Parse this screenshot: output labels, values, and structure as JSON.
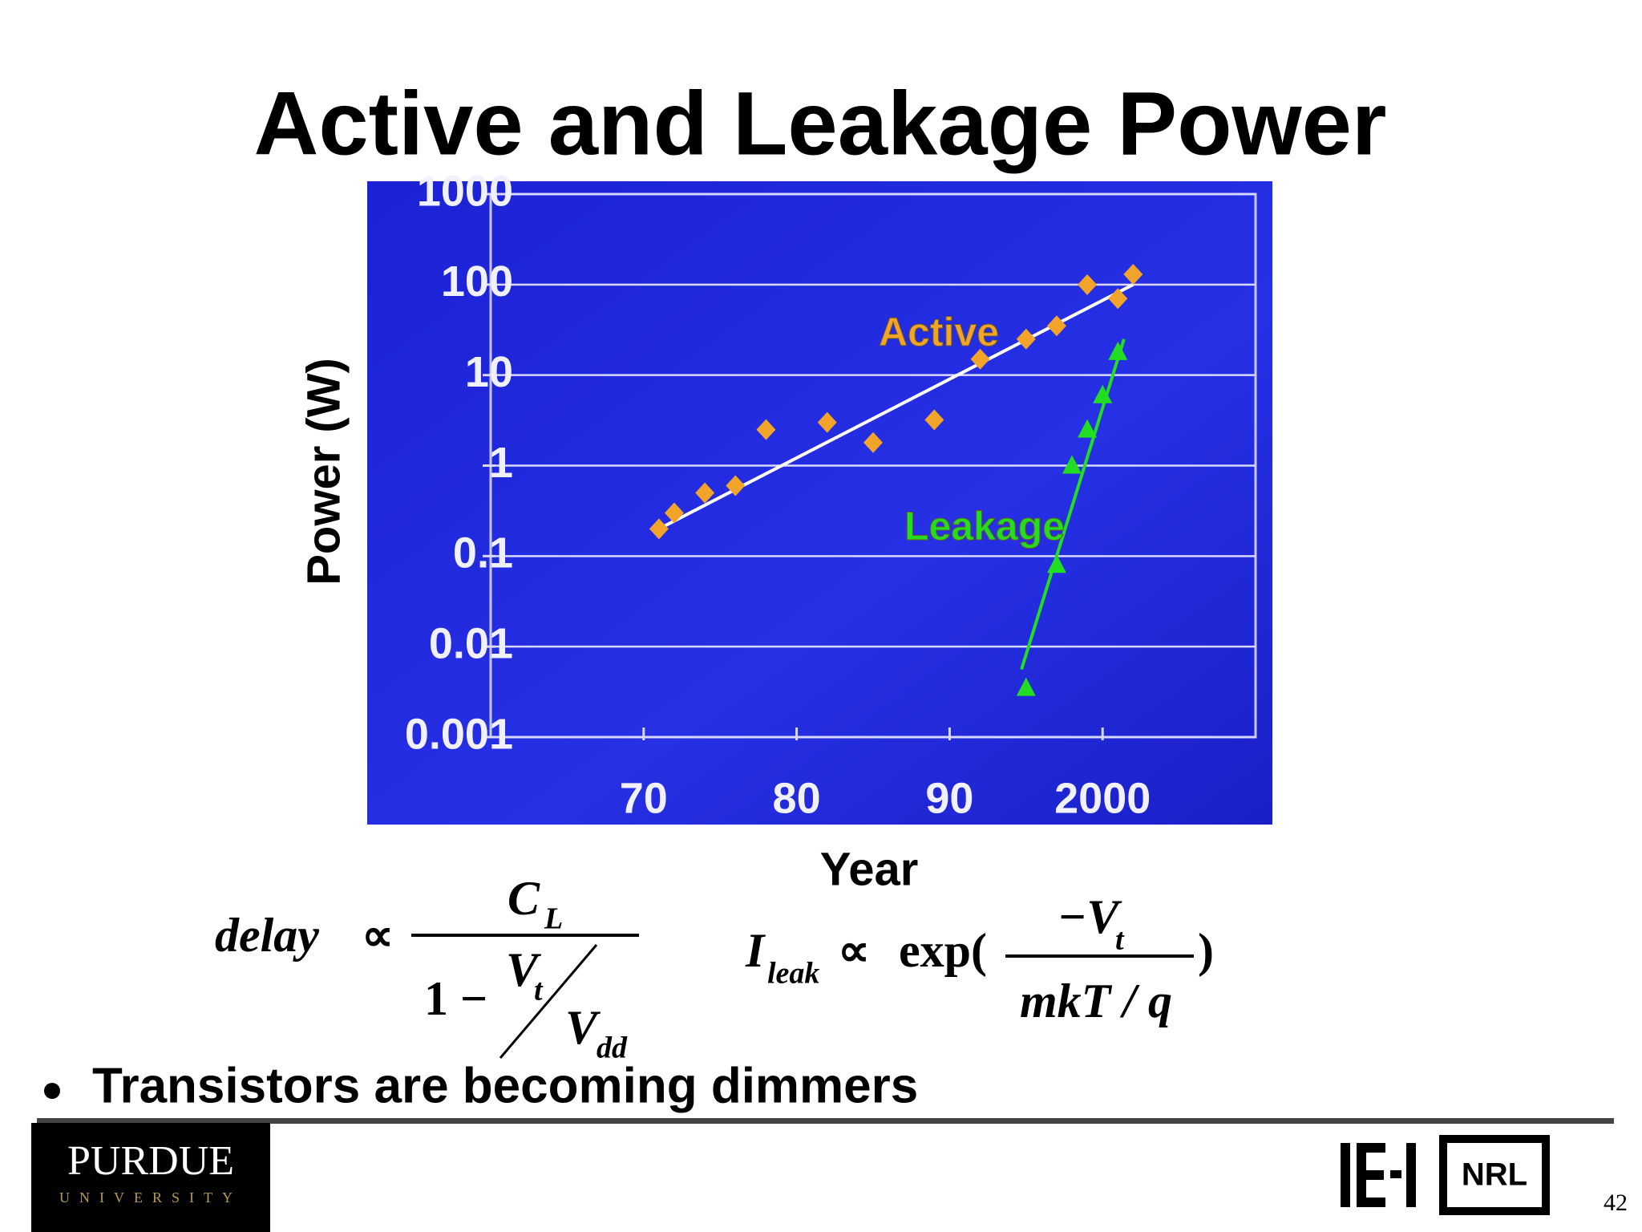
{
  "chart_data": {
    "type": "scatter",
    "title": "Active and Leakage Power",
    "xlabel": "Year",
    "ylabel": "Power (W)",
    "xlim": [
      1960,
      2010
    ],
    "xticks": [
      {
        "value": 1970,
        "label": "70"
      },
      {
        "value": 1980,
        "label": "80"
      },
      {
        "value": 1990,
        "label": "90"
      },
      2000
    ],
    "ylim": [
      0.001,
      1000
    ],
    "yticks": [
      1000,
      100,
      10,
      1,
      0.1,
      0.01,
      0.001
    ],
    "log_y": true,
    "grid": true,
    "series": [
      {
        "name": "Active",
        "color": "#f2a42a",
        "marker": "diamond",
        "x": [
          1971,
          1972,
          1974,
          1976,
          1978,
          1982,
          1985,
          1989,
          1992,
          1995,
          1997,
          1999,
          2001,
          2002
        ],
        "values": [
          0.2,
          0.3,
          0.5,
          0.6,
          2.5,
          3,
          1.8,
          3.2,
          15,
          25,
          35,
          100,
          70,
          130
        ],
        "trend": {
          "color": "#ffffff",
          "x": [
            1971,
            2002
          ],
          "values": [
            0.2,
            100
          ]
        }
      },
      {
        "name": "Leakage",
        "color": "#22dd22",
        "marker": "triangle",
        "x": [
          1995,
          1997,
          1998,
          1999,
          2000,
          2001
        ],
        "values": [
          0.0035,
          0.08,
          1,
          2.5,
          6,
          18
        ],
        "trend": {
          "color": "#22dd22",
          "x": [
            1994.7,
            2001.4
          ],
          "values": [
            0.0056,
            25
          ]
        }
      }
    ]
  },
  "equations": {
    "delay": {
      "lhs": "delay",
      "prop": "∝",
      "num": "C",
      "num_sub": "L",
      "den_a": "1 −",
      "den_v": "V",
      "den_v_sub": "t",
      "den_vdd": "V",
      "den_vdd_sub": "dd"
    },
    "leak": {
      "lhs": "I",
      "lhs_sub": "leak",
      "prop": "∝",
      "func": "exp(",
      "num": "−V",
      "num_sub": "t",
      "den": "mkT / q",
      "close": ")"
    }
  },
  "bullet": "Transistors are becoming dimmers",
  "footer": {
    "logo_left": "PURDUE",
    "logo_left_sub": "UNIVERSITY",
    "logo_right": "NRL",
    "page": "42"
  }
}
